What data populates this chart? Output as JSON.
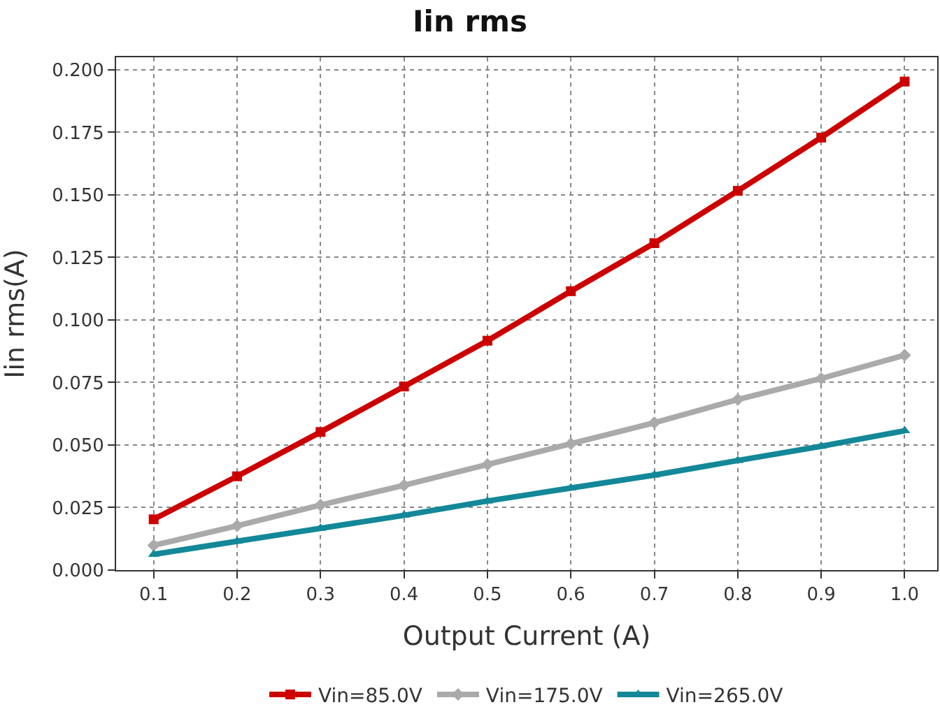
{
  "chart_data": {
    "type": "line",
    "title": "Iin rms",
    "xlabel": "Output Current (A)",
    "ylabel": "Iin rms(A)",
    "x": [
      0.1,
      0.2,
      0.3,
      0.4,
      0.5,
      0.6,
      0.7,
      0.8,
      0.9,
      1.0
    ],
    "series": [
      {
        "name": "Vin=85.0V",
        "color": "#cc0000",
        "marker": "square",
        "values": [
          0.0203,
          0.0375,
          0.0552,
          0.0734,
          0.0917,
          0.1115,
          0.1307,
          0.1516,
          0.1729,
          0.1953
        ]
      },
      {
        "name": "Vin=175.0V",
        "color": "#aaaaaa",
        "marker": "diamond",
        "values": [
          0.0099,
          0.0177,
          0.026,
          0.0339,
          0.0422,
          0.0505,
          0.0589,
          0.0682,
          0.0766,
          0.0859
        ]
      },
      {
        "name": "Vin=265.0V",
        "color": "#138898",
        "marker": "triangle",
        "values": [
          0.0063,
          0.0115,
          0.0167,
          0.0219,
          0.0276,
          0.0328,
          0.038,
          0.0438,
          0.0495,
          0.0557
        ]
      }
    ],
    "xlim": [
      0.055,
      1.039
    ],
    "xticks": [
      {
        "value": 0.1,
        "label": "0.1"
      },
      {
        "value": 0.2,
        "label": "0.2"
      },
      {
        "value": 0.3,
        "label": "0.3"
      },
      {
        "value": 0.4,
        "label": "0.4"
      },
      {
        "value": 0.5,
        "label": "0.5"
      },
      {
        "value": 0.6,
        "label": "0.6"
      },
      {
        "value": 0.7,
        "label": "0.7"
      },
      {
        "value": 0.8,
        "label": "0.8"
      },
      {
        "value": 0.9,
        "label": "0.9"
      },
      {
        "value": 1.0,
        "label": "1.0"
      }
    ],
    "ylim": [
      0,
      0.205
    ],
    "yticks": [
      {
        "value": 0,
        "label": "0.000"
      },
      {
        "value": 0.025,
        "label": "0.025"
      },
      {
        "value": 0.05,
        "label": "0.050"
      },
      {
        "value": 0.075,
        "label": "0.075"
      },
      {
        "value": 0.1,
        "label": "0.100"
      },
      {
        "value": 0.125,
        "label": "0.125"
      },
      {
        "value": 0.15,
        "label": "0.150"
      },
      {
        "value": 0.175,
        "label": "0.175"
      },
      {
        "value": 0.2,
        "label": "0.200"
      }
    ],
    "grid": true,
    "legend": "bottom",
    "line_style": "solid"
  }
}
